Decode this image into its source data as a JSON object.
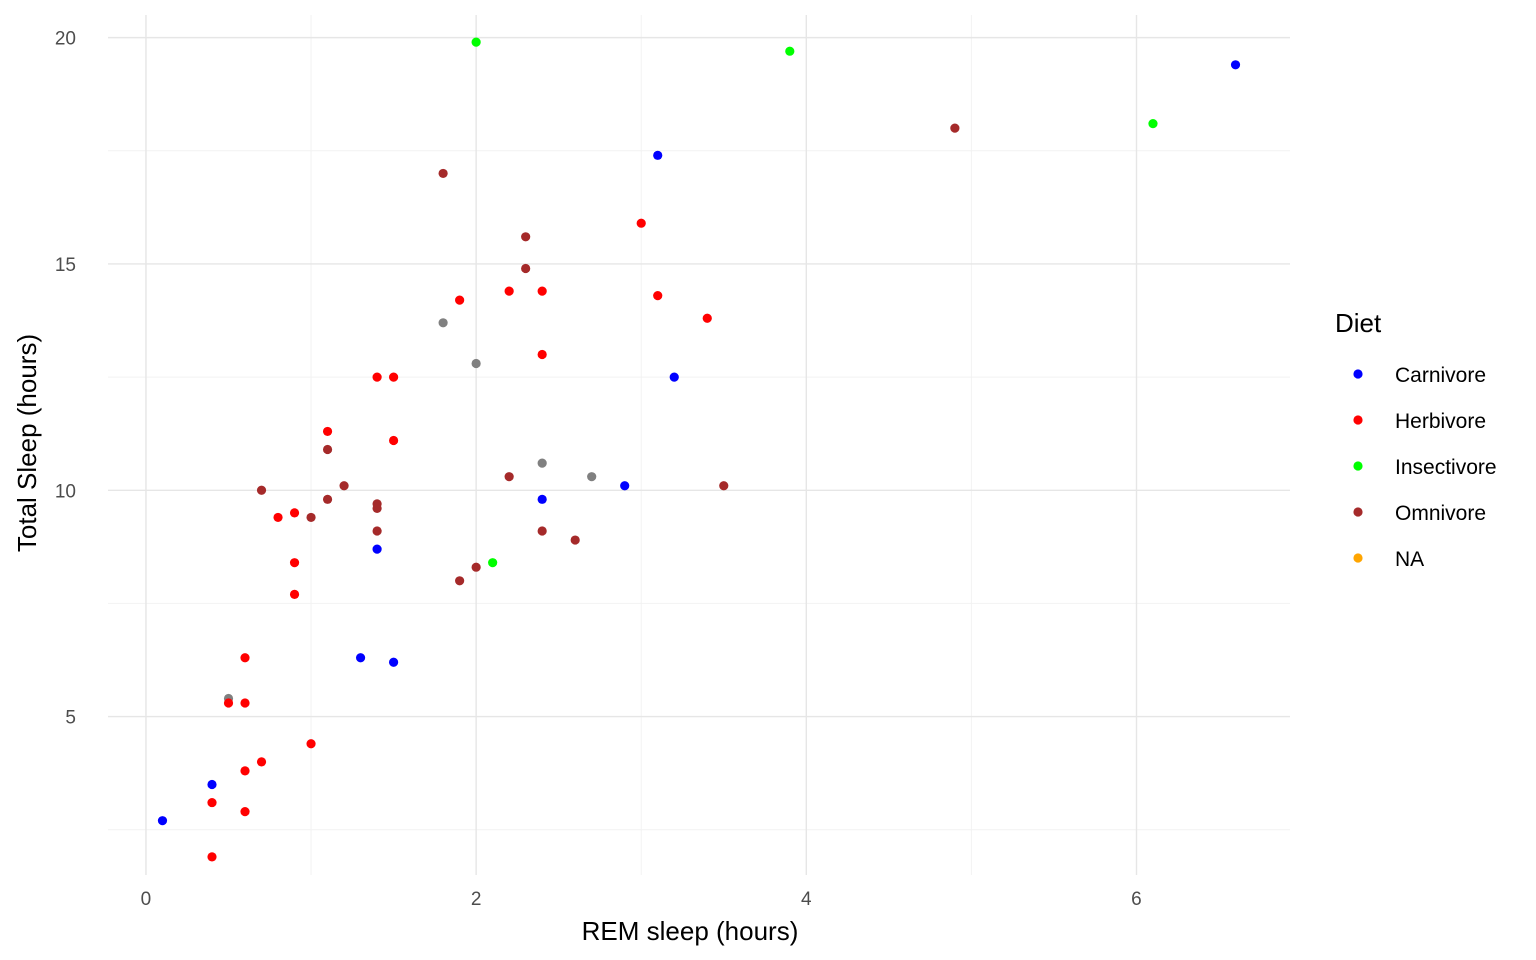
{
  "chart_data": {
    "type": "scatter",
    "xlabel": "REM sleep (hours)",
    "ylabel": "Total Sleep (hours)",
    "xlim": [
      -0.23,
      6.93
    ],
    "ylim": [
      1.5,
      20.5
    ],
    "x_ticks": [
      0,
      2,
      4,
      6
    ],
    "y_ticks": [
      5,
      10,
      15,
      20
    ],
    "x_tick_labels": [
      "0",
      "2",
      "4",
      "6"
    ],
    "y_tick_labels": [
      "5",
      "10",
      "15",
      "20"
    ],
    "grid": true,
    "legend": {
      "title": "Diet",
      "placement": "right",
      "entries": [
        {
          "label": "Carnivore",
          "color": "#0000ff"
        },
        {
          "label": "Herbivore",
          "color": "#ff0000"
        },
        {
          "label": "Insectivore",
          "color": "#00ff00"
        },
        {
          "label": "Omnivore",
          "color": "#a52a2a"
        },
        {
          "label": "NA",
          "color": "#ffa500"
        }
      ]
    },
    "na_point_color": "#808080",
    "series": [
      {
        "name": "Carnivore",
        "color": "#0000ff",
        "points": [
          [
            0.1,
            2.7
          ],
          [
            0.4,
            3.5
          ],
          [
            1.3,
            6.3
          ],
          [
            1.4,
            8.7
          ],
          [
            1.5,
            6.2
          ],
          [
            2.4,
            9.8
          ],
          [
            2.9,
            10.1
          ],
          [
            3.1,
            17.4
          ],
          [
            3.2,
            12.5
          ],
          [
            6.6,
            19.4
          ]
        ]
      },
      {
        "name": "Herbivore",
        "color": "#ff0000",
        "points": [
          [
            0.4,
            1.9
          ],
          [
            0.4,
            3.1
          ],
          [
            0.5,
            5.3
          ],
          [
            0.6,
            2.9
          ],
          [
            0.6,
            3.8
          ],
          [
            0.6,
            5.3
          ],
          [
            0.6,
            6.3
          ],
          [
            0.7,
            4.0
          ],
          [
            0.8,
            9.4
          ],
          [
            0.9,
            7.7
          ],
          [
            0.9,
            8.4
          ],
          [
            0.9,
            9.5
          ],
          [
            1.0,
            4.4
          ],
          [
            1.1,
            11.3
          ],
          [
            1.4,
            12.5
          ],
          [
            1.5,
            12.5
          ],
          [
            1.5,
            11.1
          ],
          [
            1.9,
            14.2
          ],
          [
            2.2,
            14.4
          ],
          [
            2.4,
            14.4
          ],
          [
            2.4,
            13.0
          ],
          [
            3.0,
            15.9
          ],
          [
            3.1,
            14.3
          ],
          [
            3.4,
            13.8
          ]
        ]
      },
      {
        "name": "Insectivore",
        "color": "#00ff00",
        "points": [
          [
            2.0,
            19.9
          ],
          [
            2.1,
            8.4
          ],
          [
            3.9,
            19.7
          ],
          [
            6.1,
            18.1
          ]
        ]
      },
      {
        "name": "Omnivore",
        "color": "#a52a2a",
        "points": [
          [
            0.7,
            10.0
          ],
          [
            1.0,
            9.4
          ],
          [
            1.1,
            9.8
          ],
          [
            1.1,
            10.9
          ],
          [
            1.2,
            10.1
          ],
          [
            1.4,
            9.1
          ],
          [
            1.4,
            9.6
          ],
          [
            1.4,
            9.7
          ],
          [
            1.8,
            17.0
          ],
          [
            1.9,
            8.0
          ],
          [
            2.0,
            8.3
          ],
          [
            2.2,
            10.3
          ],
          [
            2.3,
            14.9
          ],
          [
            2.3,
            15.6
          ],
          [
            2.4,
            9.1
          ],
          [
            2.6,
            8.9
          ],
          [
            3.5,
            10.1
          ],
          [
            4.9,
            18.0
          ]
        ]
      },
      {
        "color": "#808080",
        "points": [
          [
            0.5,
            5.4
          ],
          [
            1.8,
            13.7
          ],
          [
            2.0,
            12.8
          ],
          [
            2.4,
            10.6
          ],
          [
            2.7,
            10.3
          ]
        ]
      }
    ]
  }
}
